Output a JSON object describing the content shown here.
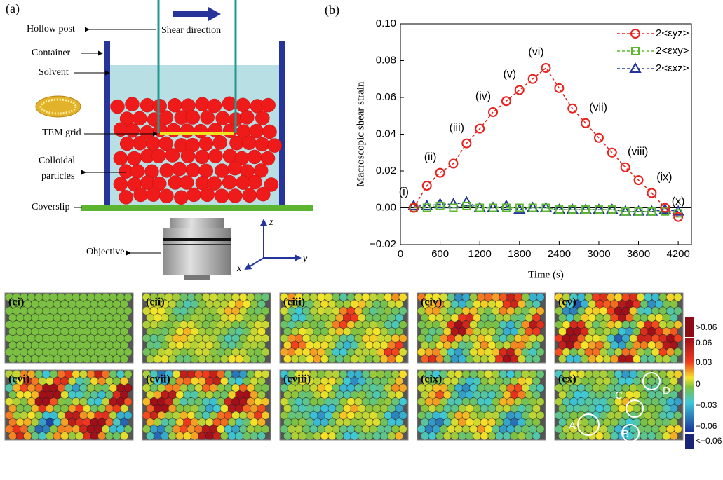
{
  "panel_a": {
    "label": "(a)",
    "hollow_post": "Hollow post",
    "shear_direction": "Shear direction",
    "container": "Container",
    "solvent": "Solvent",
    "tem_grid": "TEM grid",
    "colloidal_particles": [
      "Colloidal",
      "particles"
    ],
    "coverslip": "Coverslip",
    "objective": "Objective",
    "axes": {
      "z": "z",
      "y": "y",
      "x": "x"
    }
  },
  "chart_data": {
    "type": "line",
    "panel_label": "(b)",
    "xlabel": "Time (s)",
    "ylabel": "Macroscopic shear strain",
    "x": [
      200,
      400,
      600,
      800,
      1000,
      1200,
      1400,
      1600,
      1800,
      2000,
      2200,
      2400,
      2600,
      2800,
      3000,
      3200,
      3400,
      3600,
      3800,
      4000,
      4200
    ],
    "series": [
      {
        "name": "2<εyz>",
        "color": "#e8211d",
        "marker": "circle",
        "values": [
          0.0,
          0.012,
          0.019,
          0.024,
          0.035,
          0.043,
          0.052,
          0.058,
          0.064,
          0.07,
          0.076,
          0.065,
          0.054,
          0.046,
          0.038,
          0.03,
          0.022,
          0.015,
          0.008,
          0.0,
          -0.005
        ],
        "point_labels": [
          "(i)",
          null,
          "(ii)",
          null,
          "(iii)",
          null,
          "(iv)",
          null,
          "(v)",
          null,
          "(vi)",
          null,
          null,
          "(vii)",
          null,
          null,
          "(viii)",
          null,
          "(ix)",
          null,
          "(x)"
        ]
      },
      {
        "name": "2<εxy>",
        "color": "#5bb82e",
        "marker": "square",
        "values": [
          0.0,
          0.0,
          0.001,
          0.0,
          0.001,
          0.0,
          0.0,
          0.0,
          0.0,
          0.0,
          0.0,
          -0.001,
          -0.001,
          -0.001,
          -0.001,
          -0.001,
          -0.002,
          -0.002,
          -0.002,
          -0.002,
          -0.003
        ]
      },
      {
        "name": "2<εxz>",
        "color": "#23359a",
        "marker": "triangle",
        "values": [
          0.001,
          0.001,
          0.002,
          0.002,
          0.003,
          0.0,
          0.0,
          0.001,
          -0.001,
          0.0,
          0.0,
          -0.001,
          -0.001,
          -0.001,
          -0.001,
          -0.001,
          -0.002,
          -0.002,
          -0.002,
          -0.001,
          -0.002
        ]
      }
    ],
    "xlim": [
      0,
      4400
    ],
    "ylim": [
      -0.02,
      0.1
    ],
    "xticks": [
      0,
      600,
      1200,
      1800,
      2400,
      3000,
      3600,
      4200
    ],
    "yticks": [
      {
        "value": -0.02,
        "label": "−0.02"
      },
      {
        "value": 0,
        "label": "0.00"
      },
      0.02,
      0.04,
      0.06,
      0.08,
      {
        "value": 0.1,
        "label": "0.10"
      }
    ],
    "zero_line": true,
    "legend": "upper right"
  },
  "panel_c": {
    "tiles": [
      "(ci)",
      "(cii)",
      "(ciii)",
      "(civ)",
      "(cv)",
      "(cvi)",
      "(cvii)",
      "(cviii)",
      "(cix)",
      "(cx)"
    ],
    "regions": [
      "A",
      "B",
      "C",
      "D"
    ],
    "colorbar_labels": [
      ">0.06",
      "0.06",
      "0.03",
      "0",
      "−0.03",
      "−0.06",
      "<−0.06"
    ]
  }
}
